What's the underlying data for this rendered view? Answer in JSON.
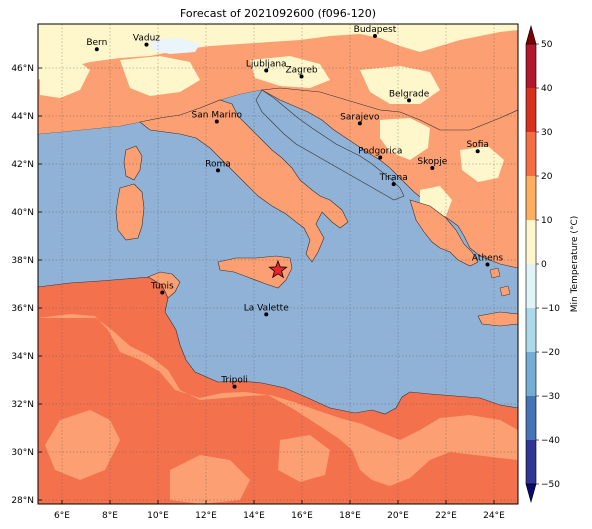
{
  "title": "Forecast of 2021092600 (f096-120)",
  "colorbar": {
    "label": "Min Temperature (°C)",
    "ticks": [
      "50",
      "40",
      "30",
      "20",
      "10",
      "0",
      "−10",
      "−20",
      "−30",
      "−40",
      "−50"
    ]
  },
  "lon_ticks": [
    "6°E",
    "8°E",
    "10°E",
    "12°E",
    "14°E",
    "16°E",
    "18°E",
    "20°E",
    "22°E",
    "24°E"
  ],
  "lat_ticks": [
    "46°N",
    "44°N",
    "42°N",
    "40°N",
    "38°N",
    "36°N",
    "34°N",
    "32°N",
    "30°N",
    "28°N"
  ],
  "cities": [
    {
      "name": "Bern",
      "lon": 7.45,
      "lat": 46.95
    },
    {
      "name": "Vaduz",
      "lon": 9.52,
      "lat": 47.14
    },
    {
      "name": "Budapest",
      "lon": 19.04,
      "lat": 47.5
    },
    {
      "name": "Ljubljana",
      "lon": 14.51,
      "lat": 46.06
    },
    {
      "name": "Zagreb",
      "lon": 15.98,
      "lat": 45.81
    },
    {
      "name": "Belgrade",
      "lon": 20.46,
      "lat": 44.82
    },
    {
      "name": "San Marino",
      "lon": 12.45,
      "lat": 43.94
    },
    {
      "name": "Sarajevo",
      "lon": 18.41,
      "lat": 43.86
    },
    {
      "name": "Sofia",
      "lon": 23.32,
      "lat": 42.7
    },
    {
      "name": "Podgorica",
      "lon": 19.26,
      "lat": 42.44
    },
    {
      "name": "Skopje",
      "lon": 21.43,
      "lat": 42.0
    },
    {
      "name": "Roma",
      "lon": 12.5,
      "lat": 41.9
    },
    {
      "name": "Tirana",
      "lon": 19.82,
      "lat": 41.33
    },
    {
      "name": "Athens",
      "lon": 23.73,
      "lat": 37.98
    },
    {
      "name": "Tunis",
      "lon": 10.18,
      "lat": 36.81
    },
    {
      "name": "La Valette",
      "lon": 14.51,
      "lat": 35.9
    },
    {
      "name": "Tripoli",
      "lon": 13.19,
      "lat": 32.89
    }
  ],
  "marker": {
    "type": "star",
    "lon": 15.0,
    "lat": 37.75,
    "color": "#e8262a"
  },
  "colors": {
    "sea": "#8fb2d6",
    "land_warm": "#fc9f72",
    "land_hot": "#f4714d",
    "land_mild": "#fef7cb",
    "land_cold": "#e9f4fb",
    "colorbar": [
      "#7f0000",
      "#b2182b",
      "#d7301f",
      "#f46d43",
      "#fdae61",
      "#fef7cb",
      "#e0f3f8",
      "#abd9e9",
      "#74add1",
      "#4575b4",
      "#313695"
    ]
  }
}
